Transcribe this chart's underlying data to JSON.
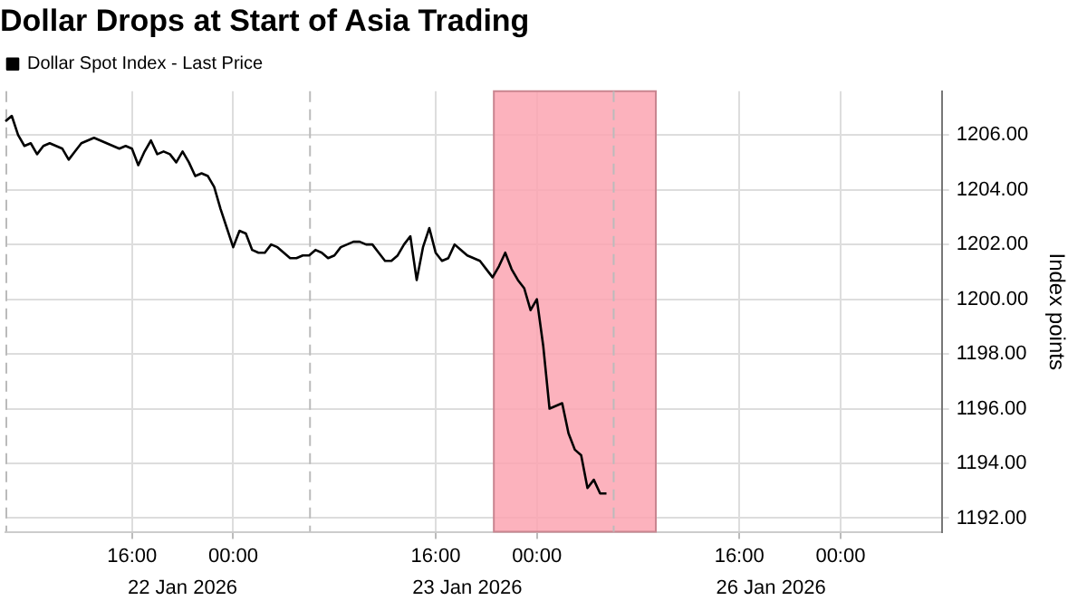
{
  "chart_data": {
    "type": "line",
    "title": "Dollar Drops at Start of Asia Trading",
    "ylabel": "Index points",
    "legend": "top left",
    "grid": true,
    "marker": "none",
    "line_style": "solid",
    "categories": [
      null,
      null,
      null,
      null,
      null,
      null,
      null,
      null,
      null,
      null,
      null,
      null,
      null,
      null,
      null,
      null,
      null,
      null,
      null,
      null,
      "16:00",
      null,
      null,
      null,
      null,
      null,
      null,
      null,
      null,
      null,
      null,
      null,
      null,
      null,
      null,
      null,
      "00:00",
      null,
      null,
      null,
      null,
      null,
      null,
      null,
      null,
      null,
      null,
      null,
      null,
      null,
      null,
      null,
      null,
      null,
      null,
      null,
      null,
      null,
      null,
      null,
      null,
      null,
      null,
      null,
      null,
      null,
      null,
      null,
      "16:00",
      null,
      null,
      null,
      null,
      null,
      null,
      null,
      null,
      null,
      null,
      null,
      null,
      null,
      null,
      null,
      "00:00",
      null,
      null,
      null,
      null,
      null,
      null,
      null,
      null,
      null,
      null,
      null,
      null,
      null,
      null,
      null,
      null,
      null,
      null,
      null,
      null,
      null,
      null,
      null,
      null,
      null,
      null,
      null,
      null,
      null,
      null,
      null,
      "16:00",
      null,
      null,
      null,
      null,
      null,
      null,
      null,
      null,
      null,
      null,
      null,
      null,
      null,
      null,
      null,
      "00:00",
      null,
      null,
      null,
      null,
      null,
      null,
      null,
      null,
      null,
      null,
      null,
      null,
      null,
      null,
      null,
      null
    ],
    "annotations": [
      "22 Jan 2026",
      "23 Jan 2026",
      "26 Jan 2026"
    ],
    "ylim": [
      1191.5,
      1207.6
    ],
    "yticks": [
      {
        "value": 1192,
        "label": "1192.00"
      },
      {
        "value": 1194,
        "label": "1194.00"
      },
      {
        "value": 1196,
        "label": "1196.00"
      },
      {
        "value": 1198,
        "label": "1198.00"
      },
      {
        "value": 1200,
        "label": "1200.00"
      },
      {
        "value": 1202,
        "label": "1202.00"
      },
      {
        "value": 1204,
        "label": "1204.00"
      },
      {
        "value": 1206,
        "label": "1206.00"
      }
    ],
    "series": [
      {
        "name": "Dollar Spot Index - Last Price",
        "color": "#000000",
        "values": [
          1206.5,
          1206.7,
          1206.0,
          1205.6,
          1205.7,
          1205.3,
          1205.6,
          1205.7,
          1205.6,
          1205.5,
          1205.1,
          1205.4,
          1205.7,
          1205.8,
          1205.9,
          1205.8,
          1205.7,
          1205.6,
          1205.5,
          1205.6,
          1205.5,
          1204.9,
          1205.4,
          1205.8,
          1205.3,
          1205.4,
          1205.3,
          1205.0,
          1205.4,
          1205.0,
          1204.5,
          1204.6,
          1204.5,
          1204.1,
          1203.3,
          1202.6,
          1201.9,
          1202.5,
          1202.4,
          1201.8,
          1201.7,
          1201.7,
          1202.0,
          1201.9,
          1201.7,
          1201.5,
          1201.5,
          1201.6,
          1201.6,
          1201.8,
          1201.7,
          1201.5,
          1201.6,
          1201.9,
          1202.0,
          1202.1,
          1202.1,
          1202.0,
          1202.0,
          1201.7,
          1201.4,
          1201.4,
          1201.6,
          1202.0,
          1202.3,
          1200.7,
          1201.9,
          1202.6,
          1201.7,
          1201.4,
          1201.5,
          1202.0,
          1201.8,
          1201.6,
          1201.5,
          1201.4,
          1201.1,
          1200.8,
          1201.2,
          1201.7,
          1201.1,
          1200.7,
          1200.4,
          1199.6,
          1200.0,
          1198.3,
          1196.0,
          1196.1,
          1196.2,
          1195.1,
          1194.5,
          1194.3,
          1193.1,
          1193.4,
          1192.9,
          1192.9,
          null,
          null,
          null,
          null,
          null,
          null,
          null,
          null,
          null,
          null,
          null,
          null,
          null,
          null,
          null,
          null,
          null,
          null,
          null,
          null,
          null,
          null,
          null,
          null,
          null,
          null,
          null,
          null,
          null,
          null,
          null,
          null,
          null,
          null,
          null,
          null,
          null,
          null,
          null,
          null,
          null,
          null,
          null,
          null,
          null,
          null,
          null,
          null,
          null,
          null,
          null,
          null,
          null
        ]
      }
    ]
  }
}
